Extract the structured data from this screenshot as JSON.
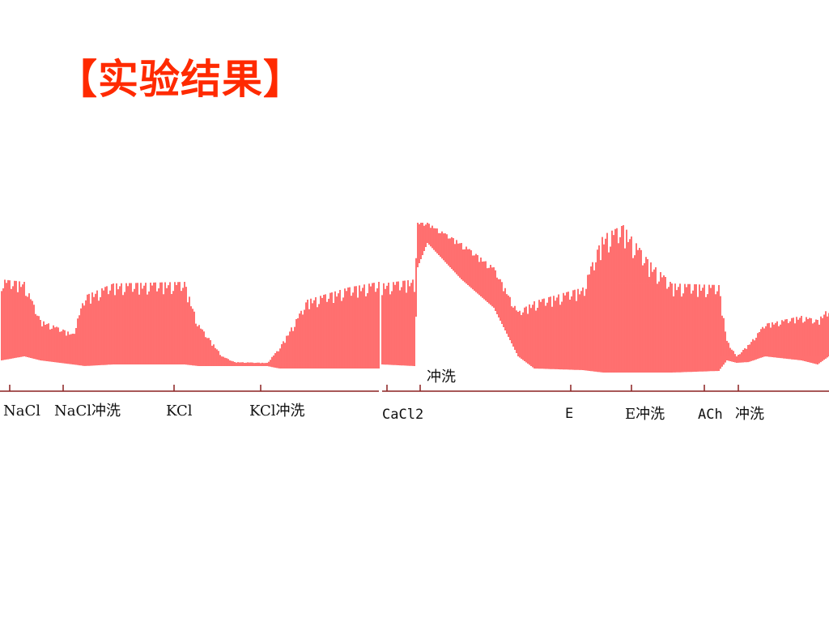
{
  "header": {
    "title": "【实验结果】"
  },
  "panels": [
    {
      "labels": [
        "NaCl",
        "NaCl冲洗",
        "KCl",
        "KCl冲洗"
      ]
    },
    {
      "labels": [
        "冲洗",
        "CaCl2",
        "E",
        "E冲洗",
        "ACh",
        "冲洗"
      ]
    }
  ]
}
